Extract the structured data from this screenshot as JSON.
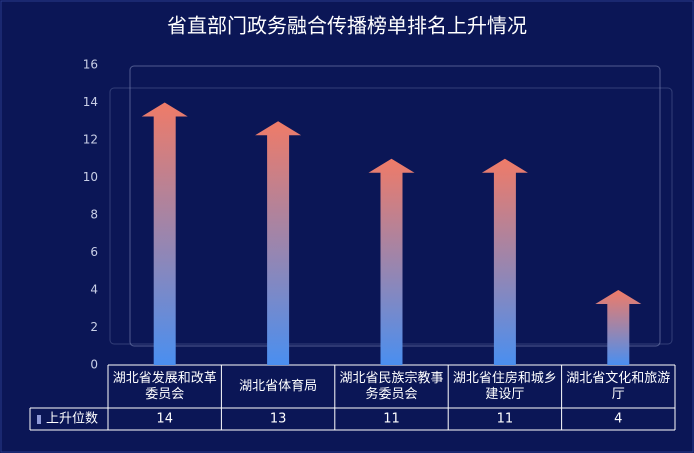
{
  "chart_data": {
    "type": "bar",
    "title": "省直部门政务融合传播榜单排名上升情况",
    "categories": [
      "湖北省发展和改革委员会",
      "湖北省体育局",
      "湖北省民族宗教事务委员会",
      "湖北省住房和城乡建设厅",
      "湖北省文化和旅游厅"
    ],
    "series": [
      {
        "name": "上升位数",
        "color": "#e8776b",
        "values": [
          14,
          13,
          11,
          11,
          4
        ]
      }
    ],
    "ylim": [
      0,
      16
    ],
    "yticks": [
      0,
      2,
      4,
      6,
      8,
      10,
      12,
      14,
      16
    ]
  }
}
